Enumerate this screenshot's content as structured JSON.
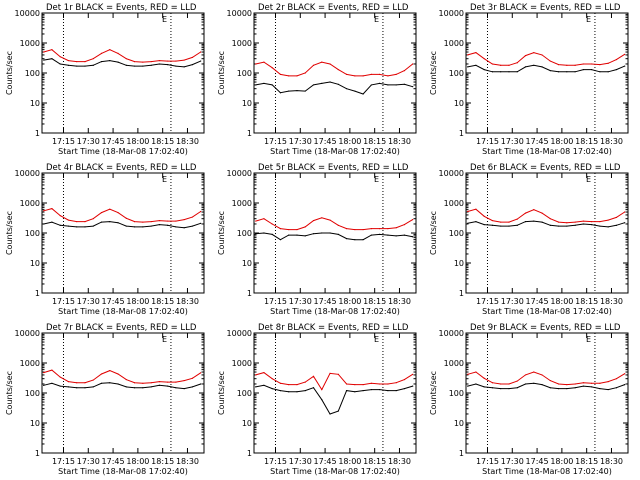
{
  "colors": {
    "events": "#000000",
    "lld": "#e00000",
    "axis": "#000000"
  },
  "common": {
    "xlabel": "Start Time (18-Mar-08 17:02:40)",
    "ylabel": "Counts/sec",
    "x_tick_labels": [
      "17:15",
      "17:30",
      "17:45",
      "18:00",
      "18:15",
      "18:30"
    ],
    "y_tick_labels": [
      "1",
      "10",
      "100",
      "1000",
      "10000"
    ],
    "marker_label": "E"
  },
  "chart_data": [
    {
      "type": "line",
      "title": "Det 1r BLACK = Events, RED = LLD",
      "y_scale": "log",
      "ylim": [
        1,
        10000
      ],
      "x": [
        "17:03",
        "17:08",
        "17:13",
        "17:18",
        "17:23",
        "17:28",
        "17:33",
        "17:38",
        "17:43",
        "17:48",
        "17:53",
        "17:58",
        "18:03",
        "18:08",
        "18:13",
        "18:18",
        "18:23",
        "18:28",
        "18:33",
        "18:38"
      ],
      "series": [
        {
          "name": "BLACK = Events",
          "color": "#000000",
          "values": [
            270,
            300,
            200,
            180,
            170,
            170,
            180,
            240,
            260,
            230,
            180,
            170,
            170,
            180,
            200,
            190,
            170,
            160,
            190,
            250
          ]
        },
        {
          "name": "RED = LLD",
          "color": "#e00000",
          "values": [
            500,
            600,
            350,
            260,
            240,
            240,
            300,
            450,
            600,
            450,
            300,
            240,
            230,
            240,
            260,
            250,
            250,
            270,
            330,
            500
          ]
        }
      ]
    },
    {
      "type": "line",
      "title": "Det 2r BLACK = Events, RED = LLD",
      "y_scale": "log",
      "ylim": [
        1,
        10000
      ],
      "x": [
        "17:03",
        "17:08",
        "17:13",
        "17:18",
        "17:23",
        "17:28",
        "17:33",
        "17:38",
        "17:43",
        "17:48",
        "17:53",
        "17:58",
        "18:03",
        "18:08",
        "18:13",
        "18:18",
        "18:23",
        "18:28",
        "18:33",
        "18:38"
      ],
      "series": [
        {
          "name": "BLACK = Events",
          "color": "#000000",
          "values": [
            40,
            45,
            40,
            22,
            25,
            26,
            25,
            40,
            45,
            50,
            42,
            30,
            25,
            20,
            40,
            45,
            40,
            40,
            42,
            35
          ]
        },
        {
          "name": "RED = LLD",
          "color": "#e00000",
          "values": [
            200,
            230,
            150,
            90,
            80,
            80,
            100,
            180,
            230,
            200,
            130,
            90,
            80,
            80,
            90,
            90,
            80,
            90,
            120,
            200
          ]
        }
      ]
    },
    {
      "type": "line",
      "title": "Det 3r BLACK = Events, RED = LLD",
      "y_scale": "log",
      "ylim": [
        1,
        10000
      ],
      "x": [
        "17:03",
        "17:08",
        "17:13",
        "17:18",
        "17:23",
        "17:28",
        "17:33",
        "17:38",
        "17:43",
        "17:48",
        "17:53",
        "17:58",
        "18:03",
        "18:08",
        "18:13",
        "18:18",
        "18:23",
        "18:28",
        "18:33",
        "18:38"
      ],
      "series": [
        {
          "name": "BLACK = Events",
          "color": "#000000",
          "values": [
            160,
            180,
            130,
            110,
            110,
            110,
            110,
            160,
            180,
            160,
            120,
            110,
            110,
            110,
            130,
            130,
            110,
            110,
            130,
            170
          ]
        },
        {
          "name": "RED = LLD",
          "color": "#e00000",
          "values": [
            400,
            480,
            300,
            200,
            180,
            180,
            220,
            380,
            480,
            400,
            250,
            190,
            180,
            180,
            200,
            200,
            190,
            210,
            280,
            420
          ]
        }
      ]
    },
    {
      "type": "line",
      "title": "Det 4r BLACK = Events, RED = LLD",
      "y_scale": "log",
      "ylim": [
        1,
        10000
      ],
      "x": [
        "17:03",
        "17:08",
        "17:13",
        "17:18",
        "17:23",
        "17:28",
        "17:33",
        "17:38",
        "17:43",
        "17:48",
        "17:53",
        "17:58",
        "18:03",
        "18:08",
        "18:13",
        "18:18",
        "18:23",
        "18:28",
        "18:33",
        "18:38"
      ],
      "series": [
        {
          "name": "BLACK = Events",
          "color": "#000000",
          "values": [
            200,
            230,
            180,
            170,
            160,
            160,
            170,
            230,
            240,
            220,
            170,
            160,
            160,
            170,
            190,
            180,
            160,
            150,
            170,
            210
          ]
        },
        {
          "name": "RED = LLD",
          "color": "#e00000",
          "values": [
            550,
            650,
            380,
            270,
            240,
            240,
            300,
            480,
            620,
            480,
            310,
            240,
            230,
            240,
            260,
            250,
            250,
            280,
            340,
            520
          ]
        }
      ]
    },
    {
      "type": "line",
      "title": "Det 5r BLACK = Events, RED = LLD",
      "y_scale": "log",
      "ylim": [
        1,
        10000
      ],
      "x": [
        "17:03",
        "17:08",
        "17:13",
        "17:18",
        "17:23",
        "17:28",
        "17:33",
        "17:38",
        "17:43",
        "17:48",
        "17:53",
        "17:58",
        "18:03",
        "18:08",
        "18:13",
        "18:18",
        "18:23",
        "18:28",
        "18:33",
        "18:38"
      ],
      "series": [
        {
          "name": "BLACK = Events",
          "color": "#000000",
          "values": [
            95,
            100,
            90,
            60,
            85,
            85,
            80,
            95,
            100,
            100,
            90,
            65,
            60,
            60,
            85,
            90,
            85,
            80,
            85,
            75
          ]
        },
        {
          "name": "RED = LLD",
          "color": "#e00000",
          "values": [
            250,
            300,
            200,
            140,
            130,
            130,
            160,
            260,
            320,
            270,
            180,
            140,
            130,
            130,
            140,
            140,
            140,
            150,
            190,
            280
          ]
        }
      ]
    },
    {
      "type": "line",
      "title": "Det 6r BLACK = Events, RED = LLD",
      "y_scale": "log",
      "ylim": [
        1,
        10000
      ],
      "x": [
        "17:03",
        "17:08",
        "17:13",
        "17:18",
        "17:23",
        "17:28",
        "17:33",
        "17:38",
        "17:43",
        "17:48",
        "17:53",
        "17:58",
        "18:03",
        "18:08",
        "18:13",
        "18:18",
        "18:23",
        "18:28",
        "18:33",
        "18:38"
      ],
      "series": [
        {
          "name": "BLACK = Events",
          "color": "#000000",
          "values": [
            210,
            240,
            190,
            180,
            170,
            170,
            180,
            240,
            250,
            230,
            180,
            170,
            170,
            180,
            200,
            190,
            170,
            160,
            180,
            220
          ]
        },
        {
          "name": "RED = LLD",
          "color": "#e00000",
          "values": [
            520,
            620,
            360,
            260,
            230,
            230,
            290,
            460,
            600,
            460,
            300,
            230,
            220,
            230,
            250,
            240,
            240,
            270,
            330,
            500
          ]
        }
      ]
    },
    {
      "type": "line",
      "title": "Det 7r BLACK = Events, RED = LLD",
      "y_scale": "log",
      "ylim": [
        1,
        10000
      ],
      "x": [
        "17:03",
        "17:08",
        "17:13",
        "17:18",
        "17:23",
        "17:28",
        "17:33",
        "17:38",
        "17:43",
        "17:48",
        "17:53",
        "17:58",
        "18:03",
        "18:08",
        "18:13",
        "18:18",
        "18:23",
        "18:28",
        "18:33",
        "18:38"
      ],
      "series": [
        {
          "name": "BLACK = Events",
          "color": "#000000",
          "values": [
            180,
            210,
            170,
            160,
            150,
            150,
            160,
            210,
            220,
            200,
            160,
            150,
            150,
            160,
            180,
            170,
            150,
            140,
            160,
            200
          ]
        },
        {
          "name": "RED = LLD",
          "color": "#e00000",
          "values": [
            480,
            580,
            340,
            240,
            220,
            220,
            270,
            430,
            560,
            430,
            280,
            220,
            210,
            220,
            240,
            230,
            230,
            260,
            310,
            470
          ]
        }
      ]
    },
    {
      "type": "line",
      "title": "Det 8r BLACK = Events, RED = LLD",
      "y_scale": "log",
      "ylim": [
        1,
        10000
      ],
      "x": [
        "17:03",
        "17:08",
        "17:13",
        "17:18",
        "17:23",
        "17:28",
        "17:33",
        "17:38",
        "17:43",
        "17:48",
        "17:53",
        "17:58",
        "18:03",
        "18:08",
        "18:13",
        "18:18",
        "18:23",
        "18:28",
        "18:33",
        "18:38"
      ],
      "series": [
        {
          "name": "BLACK = Events",
          "color": "#000000",
          "values": [
            160,
            180,
            140,
            120,
            110,
            110,
            120,
            150,
            60,
            20,
            25,
            120,
            110,
            120,
            130,
            130,
            120,
            120,
            140,
            170
          ]
        },
        {
          "name": "RED = LLD",
          "color": "#e00000",
          "values": [
            400,
            480,
            300,
            210,
            190,
            190,
            230,
            360,
            130,
            450,
            420,
            200,
            190,
            190,
            210,
            200,
            200,
            220,
            280,
            420
          ]
        }
      ]
    },
    {
      "type": "line",
      "title": "Det 9r BLACK = Events, RED = LLD",
      "y_scale": "log",
      "ylim": [
        1,
        10000
      ],
      "x": [
        "17:03",
        "17:08",
        "17:13",
        "17:18",
        "17:23",
        "17:28",
        "17:33",
        "17:38",
        "17:43",
        "17:48",
        "17:53",
        "17:58",
        "18:03",
        "18:08",
        "18:13",
        "18:18",
        "18:23",
        "18:28",
        "18:33",
        "18:38"
      ],
      "series": [
        {
          "name": "BLACK = Events",
          "color": "#000000",
          "values": [
            170,
            200,
            160,
            150,
            140,
            140,
            150,
            200,
            210,
            190,
            150,
            140,
            140,
            150,
            170,
            160,
            140,
            130,
            150,
            190
          ]
        },
        {
          "name": "RED = LLD",
          "color": "#e00000",
          "values": [
            420,
            500,
            310,
            220,
            200,
            200,
            250,
            400,
            500,
            400,
            260,
            200,
            190,
            200,
            220,
            210,
            210,
            240,
            300,
            440
          ]
        }
      ]
    }
  ]
}
